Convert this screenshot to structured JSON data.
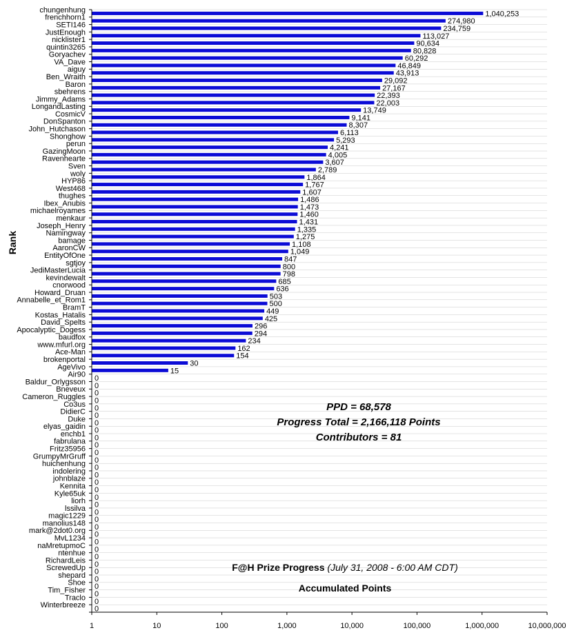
{
  "chart_data": {
    "type": "bar",
    "orientation": "horizontal",
    "x_scale": "log",
    "xlim": [
      1,
      10000000
    ],
    "x_ticks": [
      "1",
      "10",
      "100",
      "1,000",
      "10,000",
      "100,000",
      "1,000,000",
      "10,000,000"
    ],
    "ylabel": "Rank",
    "bar_color": "#0b0bd6",
    "grid": "horizontal minor lines at category boundaries",
    "categories": [
      "chungenhung",
      "frenchhorn1",
      "SETI146",
      "JustEnough",
      "nicklister1",
      "quintin3265",
      "Goryachev",
      "VA_Dave",
      "aiguy",
      "Ben_Wraith",
      "Baron",
      "sbehrens",
      "Jimmy_Adams",
      "LongandLasting",
      "CosmicV",
      "DonSpanton",
      "John_Hutchason",
      "Shonghow",
      "perun",
      "GazingMoon",
      "Ravenhearte",
      "Sven",
      "woly",
      "HYP86",
      "West468",
      "thughes",
      "Ibex_Anubis",
      "michaelroyames",
      "menkaur",
      "Joseph_Henry",
      "Namingway",
      "bamage",
      "AaronCW",
      "EntityOfOne",
      "sgtjoy",
      "JediMasterLucia",
      "kevindewalt",
      "cnorwood",
      "Howard_Druan",
      "Annabelle_et_Rom1",
      "BramT",
      "Kostas_Hatalis",
      "David_Spelts",
      "Apocalyptic_Dogess",
      "baudfox",
      "www.mfurl.org",
      "Ace-Man",
      "brokenportal",
      "AgeVivo",
      "Air90",
      "Baldur_Orlygsson",
      "Bneveux",
      "Cameron_Ruggles",
      "Co3us",
      "DidierC",
      "Duke",
      "elyas_gaidin",
      "enchb1",
      "fabrulana",
      "Fritz35956",
      "GrumpyMrGruff",
      "huichenhung",
      "indolering",
      "johnblaze",
      "Kennita",
      "Kyle65uk",
      "liorh",
      "lssilva",
      "magic1229",
      "manolius148",
      "mark@2dot0.org",
      "MvL1234",
      "naMretupmoC",
      "ntenhue",
      "RichardLeis",
      "ScrewedUp",
      "shepard",
      "Shoe",
      "Tim_Fisher",
      "Traclo",
      "Winterbreeze"
    ],
    "values": [
      1040253,
      274980,
      234759,
      113027,
      90634,
      80828,
      60292,
      46849,
      43913,
      29092,
      27167,
      22393,
      22003,
      13749,
      9141,
      8307,
      6113,
      5293,
      4241,
      4005,
      3607,
      2789,
      1864,
      1767,
      1607,
      1486,
      1473,
      1460,
      1431,
      1335,
      1275,
      1108,
      1049,
      847,
      800,
      798,
      685,
      636,
      503,
      500,
      449,
      425,
      296,
      294,
      234,
      162,
      154,
      30,
      15,
      0,
      0,
      0,
      0,
      0,
      0,
      0,
      0,
      0,
      0,
      0,
      0,
      0,
      0,
      0,
      0,
      0,
      0,
      0,
      0,
      0,
      0,
      0,
      0,
      0,
      0,
      0,
      0,
      0,
      0,
      0,
      0
    ],
    "value_labels": [
      "1,040,253",
      "274,980",
      "234,759",
      "113,027",
      "90,634",
      "80,828",
      "60,292",
      "46,849",
      "43,913",
      "29,092",
      "27,167",
      "22,393",
      "22,003",
      "13,749",
      "9,141",
      "8,307",
      "6,113",
      "5,293",
      "4,241",
      "4,005",
      "3,607",
      "2,789",
      "1,864",
      "1,767",
      "1,607",
      "1,486",
      "1,473",
      "1,460",
      "1,431",
      "1,335",
      "1,275",
      "1,108",
      "1,049",
      "847",
      "800",
      "798",
      "685",
      "636",
      "503",
      "500",
      "449",
      "425",
      "296",
      "294",
      "234",
      "162",
      "154",
      "30",
      "15",
      "0",
      "0",
      "0",
      "0",
      "0",
      "0",
      "0",
      "0",
      "0",
      "0",
      "0",
      "0",
      "0",
      "0",
      "0",
      "0",
      "0",
      "0",
      "0",
      "0",
      "0",
      "0",
      "0",
      "0",
      "0",
      "0",
      "0",
      "0",
      "0",
      "0",
      "0",
      "0"
    ]
  },
  "stats": {
    "ppd": "PPD = 68,578",
    "progress_total": "Progress Total = 2,166,118 Points",
    "contributors": "Contributors = 81"
  },
  "title": {
    "main": "F@H Prize Progress",
    "date": "(July 31, 2008 - 6:00 AM CDT)",
    "subtitle": "Accumulated Points"
  }
}
